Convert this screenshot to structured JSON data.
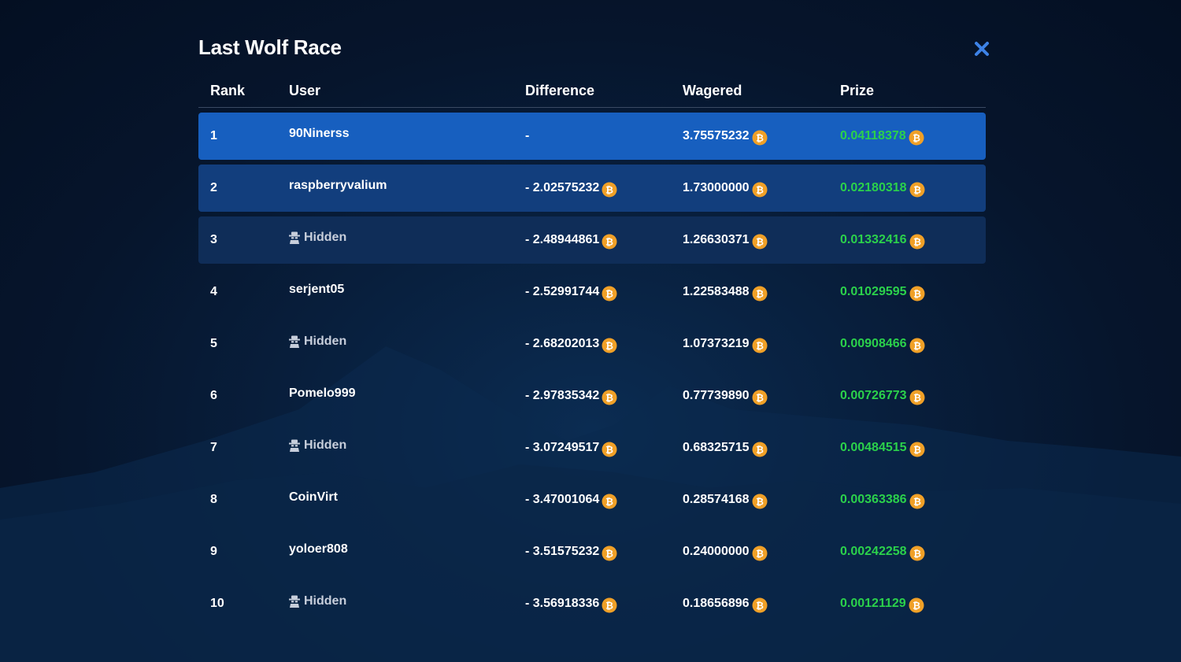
{
  "modal": {
    "title": "Last Wolf Race"
  },
  "table": {
    "headers": {
      "rank": "Rank",
      "user": "User",
      "difference": "Difference",
      "wagered": "Wagered",
      "prize": "Prize"
    },
    "rows": [
      {
        "rank": "1",
        "user": "90Ninerss",
        "hidden": false,
        "difference": "-",
        "difference_has_coin": false,
        "wagered": "3.75575232",
        "prize": "0.04118378"
      },
      {
        "rank": "2",
        "user": "raspberryvalium",
        "hidden": false,
        "difference": "- 2.02575232",
        "difference_has_coin": true,
        "wagered": "1.73000000",
        "prize": "0.02180318"
      },
      {
        "rank": "3",
        "user": "Hidden",
        "hidden": true,
        "difference": "- 2.48944861",
        "difference_has_coin": true,
        "wagered": "1.26630371",
        "prize": "0.01332416"
      },
      {
        "rank": "4",
        "user": "serjent05",
        "hidden": false,
        "difference": "- 2.52991744",
        "difference_has_coin": true,
        "wagered": "1.22583488",
        "prize": "0.01029595"
      },
      {
        "rank": "5",
        "user": "Hidden",
        "hidden": true,
        "difference": "- 2.68202013",
        "difference_has_coin": true,
        "wagered": "1.07373219",
        "prize": "0.00908466"
      },
      {
        "rank": "6",
        "user": "Pomelo999",
        "hidden": false,
        "difference": "- 2.97835342",
        "difference_has_coin": true,
        "wagered": "0.77739890",
        "prize": "0.00726773"
      },
      {
        "rank": "7",
        "user": "Hidden",
        "hidden": true,
        "difference": "- 3.07249517",
        "difference_has_coin": true,
        "wagered": "0.68325715",
        "prize": "0.00484515"
      },
      {
        "rank": "8",
        "user": "CoinVirt",
        "hidden": false,
        "difference": "- 3.47001064",
        "difference_has_coin": true,
        "wagered": "0.28574168",
        "prize": "0.00363386"
      },
      {
        "rank": "9",
        "user": "yoloer808",
        "hidden": false,
        "difference": "- 3.51575232",
        "difference_has_coin": true,
        "wagered": "0.24000000",
        "prize": "0.00242258"
      },
      {
        "rank": "10",
        "user": "Hidden",
        "hidden": true,
        "difference": "- 3.56918336",
        "difference_has_coin": true,
        "wagered": "0.18656896",
        "prize": "0.00121129"
      }
    ]
  },
  "icons": {
    "close": "close-icon",
    "coin": "bitcoin-coin-icon",
    "hidden_user": "anonymous-user-icon"
  },
  "colors": {
    "background": "#06152c",
    "row_rank1": "#175fbf",
    "row_rank2": "#123e7d",
    "row_rank3": "#0f2d58",
    "prize_green": "#2bd14b",
    "coin_orange": "#f0a027",
    "close_blue": "#3d82e6"
  }
}
